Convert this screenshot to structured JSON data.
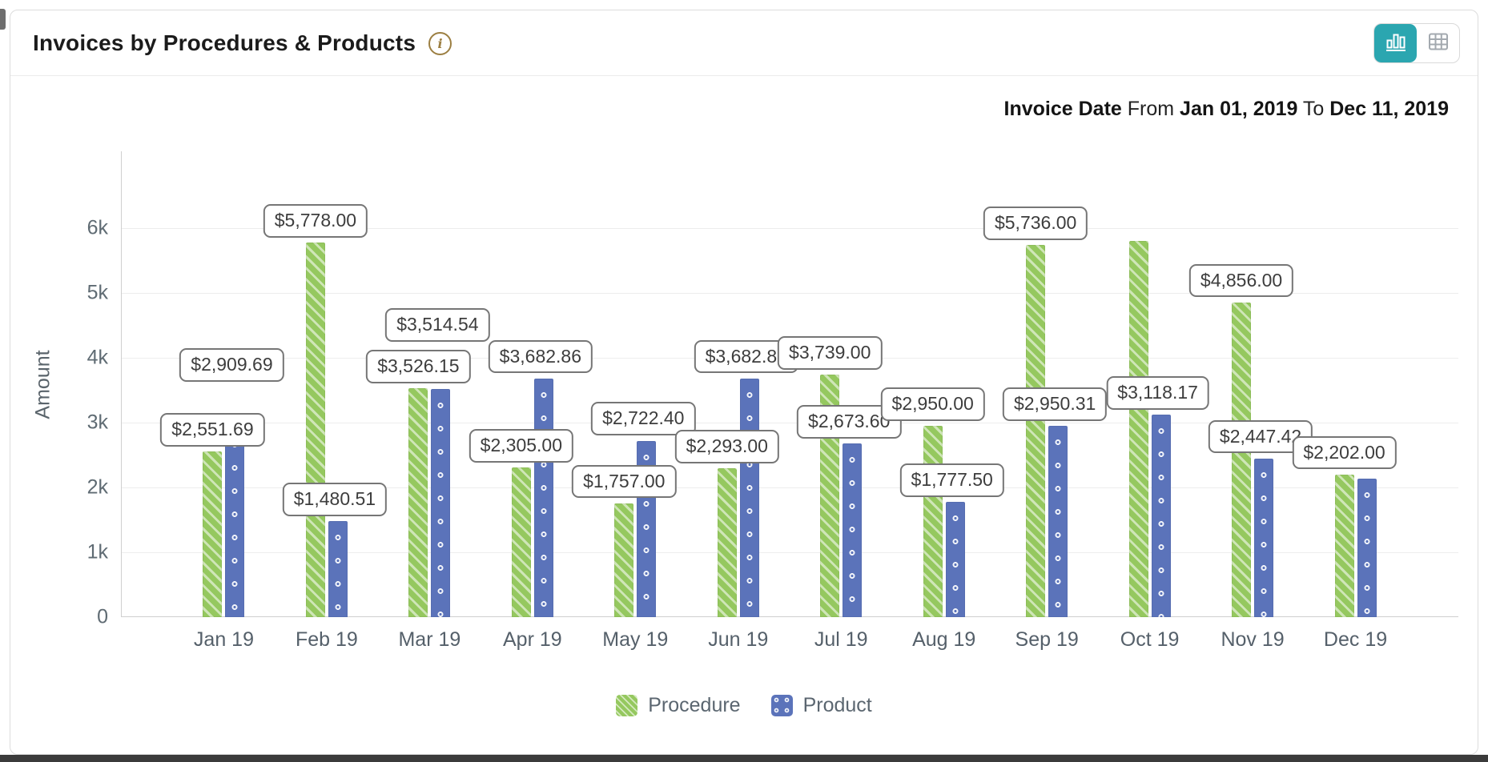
{
  "header": {
    "title": "Invoices by Procedures & Products",
    "info_icon_glyph": "i",
    "toggle": {
      "active_color": "#2BA6B0",
      "buttons": [
        {
          "name": "chart-view",
          "active": true
        },
        {
          "name": "table-view",
          "active": false
        }
      ]
    }
  },
  "filters": {
    "invoice_date_label": "Invoice Date",
    "from_label": "From",
    "from_date": "Jan 01, 2019",
    "to_label": "To",
    "to_date": "Dec 11, 2019"
  },
  "chart_data": {
    "type": "bar",
    "title": "Invoices by Procedures & Products",
    "categories": [
      "Jan 19",
      "Feb 19",
      "Mar 19",
      "Apr 19",
      "May 19",
      "Jun 19",
      "Jul 19",
      "Aug 19",
      "Sep 19",
      "Oct 19",
      "Nov 19",
      "Dec 19"
    ],
    "series": [
      {
        "name": "Procedure",
        "color": "#95C85F",
        "pattern": "diagonal-hatch",
        "values": [
          2551.69,
          5778.0,
          3526.15,
          2305.0,
          1757.0,
          2293.0,
          3739.0,
          2950.0,
          5736.0,
          5800,
          4856.0,
          2202.0
        ],
        "labels": [
          "$2,551.69",
          "$5,778.00",
          "$3,526.15",
          "$2,305.00",
          "$1,757.00",
          "$2,293.00",
          "$3,739.00",
          "$2,950.00",
          "$5,736.00",
          null,
          "$4,856.00",
          "$2,202.00"
        ]
      },
      {
        "name": "Product",
        "color": "#5B73BA",
        "pattern": "dots",
        "values": [
          2909.69,
          1480.51,
          3514.54,
          3682.86,
          2722.4,
          3682.87,
          2673.6,
          1777.5,
          2950.31,
          3118.17,
          2447.42,
          2130
        ],
        "labels": [
          "$2,909.69",
          "$1,480.51",
          "$3,514.54",
          "$3,682.86",
          "$2,722.40",
          "$3,682.87",
          "$2,673.60",
          "$1,777.50",
          "$2,950.31",
          "$3,118.17",
          "$2,447.42",
          null
        ]
      }
    ],
    "xlabel": "",
    "ylabel": "Amount",
    "yticks": [
      "0",
      "1k",
      "2k",
      "3k",
      "4k",
      "5k",
      "6k"
    ],
    "ytick_values": [
      0,
      1000,
      2000,
      3000,
      4000,
      5000,
      6000
    ],
    "ylim": [
      0,
      7000
    ],
    "grid": true,
    "legend_position": "bottom",
    "value_prefix": "$"
  }
}
